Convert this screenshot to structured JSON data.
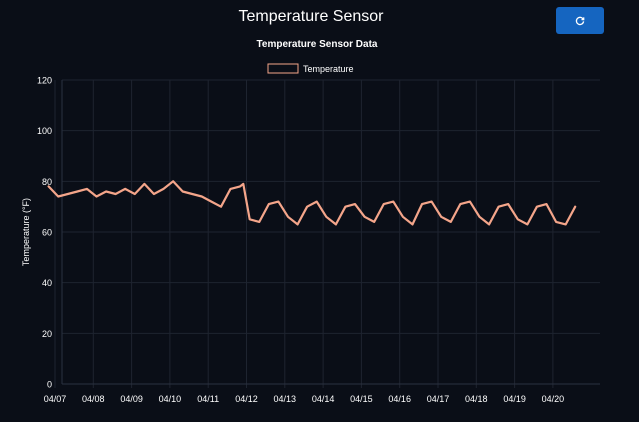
{
  "header": {
    "title": "Temperature Sensor",
    "refresh_icon": "refresh-icon"
  },
  "colors": {
    "background": "#0a0e17",
    "accent_button": "#1565c0",
    "series_line": "#f4a58a",
    "grid": "#1e2430",
    "text": "#ffffff"
  },
  "chart_data": {
    "type": "line",
    "title": "Temperature Sensor Data",
    "xlabel": "",
    "ylabel": "Temperature (°F)",
    "ylim": [
      0,
      120
    ],
    "yticks": [
      0,
      20,
      40,
      60,
      80,
      100,
      120
    ],
    "xticks": [
      "04/07",
      "04/08",
      "04/09",
      "04/10",
      "04/11",
      "04/12",
      "04/13",
      "04/14",
      "04/15",
      "04/16",
      "04/17",
      "04/18",
      "04/19",
      "04/20"
    ],
    "grid": true,
    "legend_position": "top-center",
    "series": [
      {
        "name": "Temperature",
        "x": [
          "04/06 20:00",
          "04/07 02:00",
          "04/07 08:00",
          "04/07 14:00",
          "04/07 20:00",
          "04/08 02:00",
          "04/08 08:00",
          "04/08 14:00",
          "04/08 20:00",
          "04/09 02:00",
          "04/09 08:00",
          "04/09 14:00",
          "04/09 20:00",
          "04/10 02:00",
          "04/10 08:00",
          "04/10 14:00",
          "04/10 20:00",
          "04/11 02:00",
          "04/11 08:00",
          "04/11 14:00",
          "04/11 20:00",
          "04/11 22:00",
          "04/12 02:00",
          "04/12 08:00",
          "04/12 14:00",
          "04/12 20:00",
          "04/13 02:00",
          "04/13 08:00",
          "04/13 14:00",
          "04/13 20:00",
          "04/14 02:00",
          "04/14 08:00",
          "04/14 14:00",
          "04/14 20:00",
          "04/15 02:00",
          "04/15 08:00",
          "04/15 14:00",
          "04/15 20:00",
          "04/16 02:00",
          "04/16 08:00",
          "04/16 14:00",
          "04/16 20:00",
          "04/17 02:00",
          "04/17 08:00",
          "04/17 14:00",
          "04/17 20:00",
          "04/18 02:00",
          "04/18 08:00",
          "04/18 14:00",
          "04/18 20:00",
          "04/19 02:00",
          "04/19 08:00",
          "04/19 14:00",
          "04/19 20:00",
          "04/20 02:00",
          "04/20 08:00",
          "04/20 14:00"
        ],
        "values": [
          78,
          74,
          75,
          76,
          77,
          74,
          76,
          75,
          77,
          75,
          79,
          75,
          77,
          80,
          76,
          75,
          74,
          72,
          70,
          77,
          78,
          79,
          65,
          64,
          71,
          72,
          66,
          63,
          70,
          72,
          66,
          63,
          70,
          71,
          66,
          64,
          71,
          72,
          66,
          63,
          71,
          72,
          66,
          64,
          71,
          72,
          66,
          63,
          70,
          71,
          65,
          63,
          70,
          71,
          64,
          63,
          70
        ]
      }
    ]
  }
}
